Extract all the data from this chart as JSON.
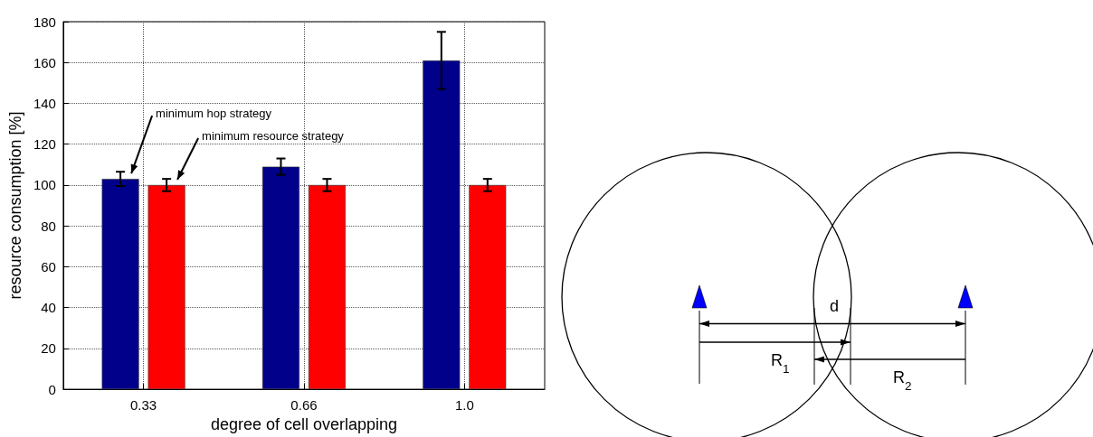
{
  "chart_data": [
    {
      "type": "bar",
      "xlabel": "degree of cell overlapping",
      "ylabel": "resource consumption [%]",
      "categories": [
        "0.33",
        "0.66",
        "1.0"
      ],
      "series": [
        {
          "color": "#00008b",
          "values": [
            103,
            109,
            161
          ],
          "errors": [
            3.5,
            4,
            14
          ]
        },
        {
          "color": "#ff0000",
          "values": [
            100,
            100,
            100
          ],
          "errors": [
            3,
            3,
            3
          ]
        }
      ],
      "ylim": [
        0,
        180
      ],
      "yticks": [
        0,
        20,
        40,
        60,
        80,
        100,
        120,
        140,
        160,
        180
      ],
      "grid": true,
      "annotations": [
        "minimum hop strategy",
        "minimum resource strategy"
      ]
    },
    {
      "type": "other",
      "annotations": [
        "d",
        "R$_{1}$",
        "R$_{2}$"
      ]
    }
  ]
}
